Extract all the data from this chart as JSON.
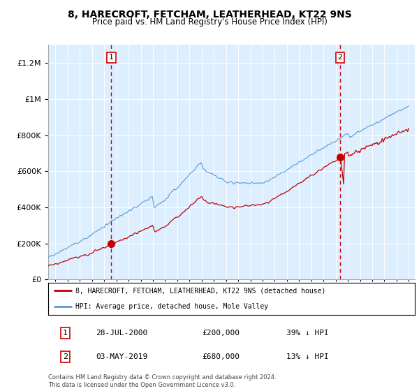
{
  "title": "8, HARECROFT, FETCHAM, LEATHERHEAD, KT22 9NS",
  "subtitle": "Price paid vs. HM Land Registry's House Price Index (HPI)",
  "ylim": [
    0,
    1300000
  ],
  "yticks": [
    0,
    200000,
    400000,
    600000,
    800000,
    1000000,
    1200000
  ],
  "xlim_start": 1995.4,
  "xlim_end": 2025.5,
  "sale1_date_x": 2000.58,
  "sale1_price": 200000,
  "sale1_label": "1",
  "sale2_date_x": 2019.37,
  "sale2_price": 680000,
  "sale2_label": "2",
  "hpi_color": "#5b9bd5",
  "hpi_fill_color": "#ddeeff",
  "price_color": "#c00000",
  "vline_color": "#cc0000",
  "grid_color": "#cccccc",
  "bg_color": "#ddeeff",
  "legend_entry1": "8, HARECROFT, FETCHAM, LEATHERHEAD, KT22 9NS (detached house)",
  "legend_entry2": "HPI: Average price, detached house, Mole Valley",
  "table_row1": [
    "1",
    "28-JUL-2000",
    "£200,000",
    "39% ↓ HPI"
  ],
  "table_row2": [
    "2",
    "03-MAY-2019",
    "£680,000",
    "13% ↓ HPI"
  ],
  "footnote": "Contains HM Land Registry data © Crown copyright and database right 2024.\nThis data is licensed under the Open Government Licence v3.0.",
  "title_fontsize": 10,
  "subtitle_fontsize": 8.5
}
